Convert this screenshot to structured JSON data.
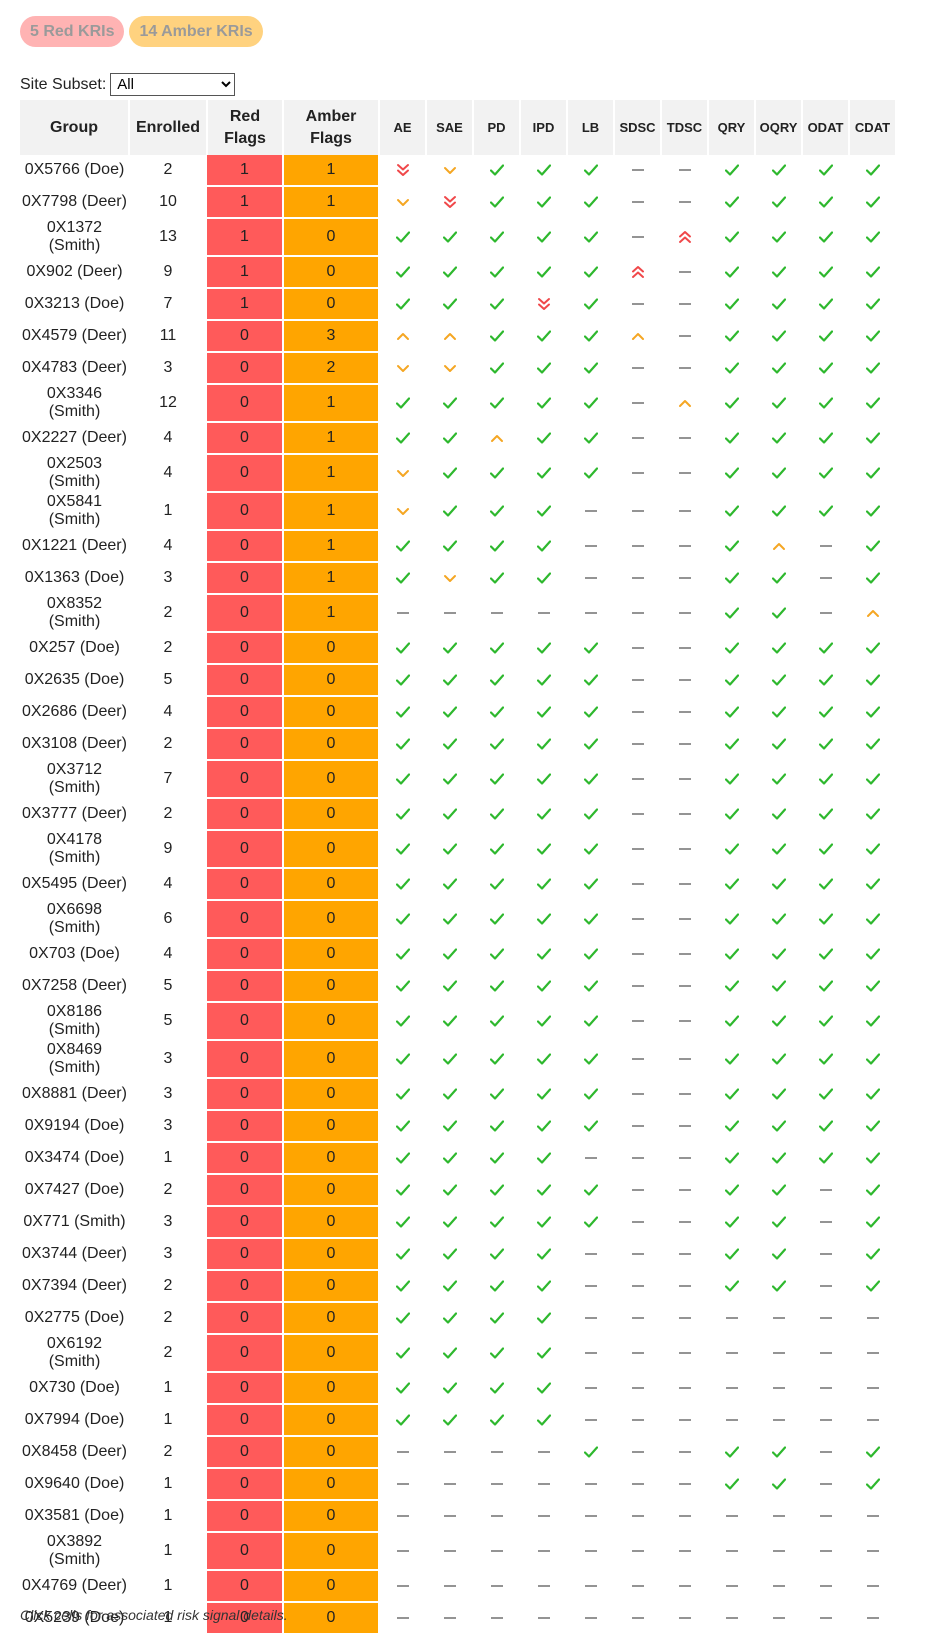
{
  "badges": {
    "red": "5 Red KRIs",
    "amber": "14 Amber KRIs"
  },
  "subset": {
    "label": "Site Subset:",
    "selected": "All"
  },
  "table": {
    "headers": [
      "Group",
      "Enrolled",
      "Red Flags",
      "Amber Flags"
    ],
    "kri_headers": [
      "AE",
      "SAE",
      "PD",
      "IPD",
      "LB",
      "SDSC",
      "TDSC",
      "QRY",
      "OQRY",
      "ODAT",
      "CDAT"
    ],
    "rows": [
      {
        "group": "0X5766 (Doe)",
        "enrolled": "2",
        "red": "1",
        "amber": "1",
        "kri": [
          "red-down",
          "amber-down",
          "ok",
          "ok",
          "ok",
          "none",
          "none",
          "ok",
          "ok",
          "ok",
          "ok"
        ]
      },
      {
        "group": "0X7798 (Deer)",
        "enrolled": "10",
        "red": "1",
        "amber": "1",
        "kri": [
          "amber-down",
          "red-down",
          "ok",
          "ok",
          "ok",
          "none",
          "none",
          "ok",
          "ok",
          "ok",
          "ok"
        ]
      },
      {
        "group": "0X1372 (Smith)",
        "enrolled": "13",
        "red": "1",
        "amber": "0",
        "kri": [
          "ok",
          "ok",
          "ok",
          "ok",
          "ok",
          "none",
          "red-up",
          "ok",
          "ok",
          "ok",
          "ok"
        ]
      },
      {
        "group": "0X902 (Deer)",
        "enrolled": "9",
        "red": "1",
        "amber": "0",
        "kri": [
          "ok",
          "ok",
          "ok",
          "ok",
          "ok",
          "red-up",
          "none",
          "ok",
          "ok",
          "ok",
          "ok"
        ]
      },
      {
        "group": "0X3213 (Doe)",
        "enrolled": "7",
        "red": "1",
        "amber": "0",
        "kri": [
          "ok",
          "ok",
          "ok",
          "red-down",
          "ok",
          "none",
          "none",
          "ok",
          "ok",
          "ok",
          "ok"
        ]
      },
      {
        "group": "0X4579 (Deer)",
        "enrolled": "11",
        "red": "0",
        "amber": "3",
        "kri": [
          "amber-up",
          "amber-up",
          "ok",
          "ok",
          "ok",
          "amber-up",
          "none",
          "ok",
          "ok",
          "ok",
          "ok"
        ]
      },
      {
        "group": "0X4783 (Deer)",
        "enrolled": "3",
        "red": "0",
        "amber": "2",
        "kri": [
          "amber-down",
          "amber-down",
          "ok",
          "ok",
          "ok",
          "none",
          "none",
          "ok",
          "ok",
          "ok",
          "ok"
        ]
      },
      {
        "group": "0X3346 (Smith)",
        "enrolled": "12",
        "red": "0",
        "amber": "1",
        "kri": [
          "ok",
          "ok",
          "ok",
          "ok",
          "ok",
          "none",
          "amber-up",
          "ok",
          "ok",
          "ok",
          "ok"
        ]
      },
      {
        "group": "0X2227 (Deer)",
        "enrolled": "4",
        "red": "0",
        "amber": "1",
        "kri": [
          "ok",
          "ok",
          "amber-up",
          "ok",
          "ok",
          "none",
          "none",
          "ok",
          "ok",
          "ok",
          "ok"
        ]
      },
      {
        "group": "0X2503 (Smith)",
        "enrolled": "4",
        "red": "0",
        "amber": "1",
        "kri": [
          "amber-down",
          "ok",
          "ok",
          "ok",
          "ok",
          "none",
          "none",
          "ok",
          "ok",
          "ok",
          "ok"
        ]
      },
      {
        "group": "0X5841 (Smith)",
        "enrolled": "1",
        "red": "0",
        "amber": "1",
        "kri": [
          "amber-down",
          "ok",
          "ok",
          "ok",
          "none",
          "none",
          "none",
          "ok",
          "ok",
          "ok",
          "ok"
        ]
      },
      {
        "group": "0X1221 (Deer)",
        "enrolled": "4",
        "red": "0",
        "amber": "1",
        "kri": [
          "ok",
          "ok",
          "ok",
          "ok",
          "none",
          "none",
          "none",
          "ok",
          "amber-up",
          "none",
          "ok"
        ]
      },
      {
        "group": "0X1363 (Doe)",
        "enrolled": "3",
        "red": "0",
        "amber": "1",
        "kri": [
          "ok",
          "amber-down",
          "ok",
          "ok",
          "none",
          "none",
          "none",
          "ok",
          "ok",
          "none",
          "ok"
        ]
      },
      {
        "group": "0X8352 (Smith)",
        "enrolled": "2",
        "red": "0",
        "amber": "1",
        "kri": [
          "none",
          "none",
          "none",
          "none",
          "none",
          "none",
          "none",
          "ok",
          "ok",
          "none",
          "amber-up"
        ]
      },
      {
        "group": "0X257 (Doe)",
        "enrolled": "2",
        "red": "0",
        "amber": "0",
        "kri": [
          "ok",
          "ok",
          "ok",
          "ok",
          "ok",
          "none",
          "none",
          "ok",
          "ok",
          "ok",
          "ok"
        ]
      },
      {
        "group": "0X2635 (Doe)",
        "enrolled": "5",
        "red": "0",
        "amber": "0",
        "kri": [
          "ok",
          "ok",
          "ok",
          "ok",
          "ok",
          "none",
          "none",
          "ok",
          "ok",
          "ok",
          "ok"
        ]
      },
      {
        "group": "0X2686 (Deer)",
        "enrolled": "4",
        "red": "0",
        "amber": "0",
        "kri": [
          "ok",
          "ok",
          "ok",
          "ok",
          "ok",
          "none",
          "none",
          "ok",
          "ok",
          "ok",
          "ok"
        ]
      },
      {
        "group": "0X3108 (Deer)",
        "enrolled": "2",
        "red": "0",
        "amber": "0",
        "kri": [
          "ok",
          "ok",
          "ok",
          "ok",
          "ok",
          "none",
          "none",
          "ok",
          "ok",
          "ok",
          "ok"
        ]
      },
      {
        "group": "0X3712 (Smith)",
        "enrolled": "7",
        "red": "0",
        "amber": "0",
        "kri": [
          "ok",
          "ok",
          "ok",
          "ok",
          "ok",
          "none",
          "none",
          "ok",
          "ok",
          "ok",
          "ok"
        ]
      },
      {
        "group": "0X3777 (Deer)",
        "enrolled": "2",
        "red": "0",
        "amber": "0",
        "kri": [
          "ok",
          "ok",
          "ok",
          "ok",
          "ok",
          "none",
          "none",
          "ok",
          "ok",
          "ok",
          "ok"
        ]
      },
      {
        "group": "0X4178 (Smith)",
        "enrolled": "9",
        "red": "0",
        "amber": "0",
        "kri": [
          "ok",
          "ok",
          "ok",
          "ok",
          "ok",
          "none",
          "none",
          "ok",
          "ok",
          "ok",
          "ok"
        ]
      },
      {
        "group": "0X5495 (Deer)",
        "enrolled": "4",
        "red": "0",
        "amber": "0",
        "kri": [
          "ok",
          "ok",
          "ok",
          "ok",
          "ok",
          "none",
          "none",
          "ok",
          "ok",
          "ok",
          "ok"
        ]
      },
      {
        "group": "0X6698 (Smith)",
        "enrolled": "6",
        "red": "0",
        "amber": "0",
        "kri": [
          "ok",
          "ok",
          "ok",
          "ok",
          "ok",
          "none",
          "none",
          "ok",
          "ok",
          "ok",
          "ok"
        ]
      },
      {
        "group": "0X703 (Doe)",
        "enrolled": "4",
        "red": "0",
        "amber": "0",
        "kri": [
          "ok",
          "ok",
          "ok",
          "ok",
          "ok",
          "none",
          "none",
          "ok",
          "ok",
          "ok",
          "ok"
        ]
      },
      {
        "group": "0X7258 (Deer)",
        "enrolled": "5",
        "red": "0",
        "amber": "0",
        "kri": [
          "ok",
          "ok",
          "ok",
          "ok",
          "ok",
          "none",
          "none",
          "ok",
          "ok",
          "ok",
          "ok"
        ]
      },
      {
        "group": "0X8186 (Smith)",
        "enrolled": "5",
        "red": "0",
        "amber": "0",
        "kri": [
          "ok",
          "ok",
          "ok",
          "ok",
          "ok",
          "none",
          "none",
          "ok",
          "ok",
          "ok",
          "ok"
        ]
      },
      {
        "group": "0X8469 (Smith)",
        "enrolled": "3",
        "red": "0",
        "amber": "0",
        "kri": [
          "ok",
          "ok",
          "ok",
          "ok",
          "ok",
          "none",
          "none",
          "ok",
          "ok",
          "ok",
          "ok"
        ]
      },
      {
        "group": "0X8881 (Deer)",
        "enrolled": "3",
        "red": "0",
        "amber": "0",
        "kri": [
          "ok",
          "ok",
          "ok",
          "ok",
          "ok",
          "none",
          "none",
          "ok",
          "ok",
          "ok",
          "ok"
        ]
      },
      {
        "group": "0X9194 (Doe)",
        "enrolled": "3",
        "red": "0",
        "amber": "0",
        "kri": [
          "ok",
          "ok",
          "ok",
          "ok",
          "ok",
          "none",
          "none",
          "ok",
          "ok",
          "ok",
          "ok"
        ]
      },
      {
        "group": "0X3474 (Doe)",
        "enrolled": "1",
        "red": "0",
        "amber": "0",
        "kri": [
          "ok",
          "ok",
          "ok",
          "ok",
          "none",
          "none",
          "none",
          "ok",
          "ok",
          "ok",
          "ok"
        ]
      },
      {
        "group": "0X7427 (Doe)",
        "enrolled": "2",
        "red": "0",
        "amber": "0",
        "kri": [
          "ok",
          "ok",
          "ok",
          "ok",
          "ok",
          "none",
          "none",
          "ok",
          "ok",
          "none",
          "ok"
        ]
      },
      {
        "group": "0X771 (Smith)",
        "enrolled": "3",
        "red": "0",
        "amber": "0",
        "kri": [
          "ok",
          "ok",
          "ok",
          "ok",
          "ok",
          "none",
          "none",
          "ok",
          "ok",
          "none",
          "ok"
        ]
      },
      {
        "group": "0X3744 (Deer)",
        "enrolled": "3",
        "red": "0",
        "amber": "0",
        "kri": [
          "ok",
          "ok",
          "ok",
          "ok",
          "none",
          "none",
          "none",
          "ok",
          "ok",
          "none",
          "ok"
        ]
      },
      {
        "group": "0X7394 (Deer)",
        "enrolled": "2",
        "red": "0",
        "amber": "0",
        "kri": [
          "ok",
          "ok",
          "ok",
          "ok",
          "none",
          "none",
          "none",
          "ok",
          "ok",
          "none",
          "ok"
        ]
      },
      {
        "group": "0X2775 (Doe)",
        "enrolled": "2",
        "red": "0",
        "amber": "0",
        "kri": [
          "ok",
          "ok",
          "ok",
          "ok",
          "none",
          "none",
          "none",
          "none",
          "none",
          "none",
          "none"
        ]
      },
      {
        "group": "0X6192 (Smith)",
        "enrolled": "2",
        "red": "0",
        "amber": "0",
        "kri": [
          "ok",
          "ok",
          "ok",
          "ok",
          "none",
          "none",
          "none",
          "none",
          "none",
          "none",
          "none"
        ]
      },
      {
        "group": "0X730 (Doe)",
        "enrolled": "1",
        "red": "0",
        "amber": "0",
        "kri": [
          "ok",
          "ok",
          "ok",
          "ok",
          "none",
          "none",
          "none",
          "none",
          "none",
          "none",
          "none"
        ]
      },
      {
        "group": "0X7994 (Doe)",
        "enrolled": "1",
        "red": "0",
        "amber": "0",
        "kri": [
          "ok",
          "ok",
          "ok",
          "ok",
          "none",
          "none",
          "none",
          "none",
          "none",
          "none",
          "none"
        ]
      },
      {
        "group": "0X8458 (Deer)",
        "enrolled": "2",
        "red": "0",
        "amber": "0",
        "kri": [
          "none",
          "none",
          "none",
          "none",
          "ok",
          "none",
          "none",
          "ok",
          "ok",
          "none",
          "ok"
        ]
      },
      {
        "group": "0X9640 (Doe)",
        "enrolled": "1",
        "red": "0",
        "amber": "0",
        "kri": [
          "none",
          "none",
          "none",
          "none",
          "none",
          "none",
          "none",
          "ok",
          "ok",
          "none",
          "ok"
        ]
      },
      {
        "group": "0X3581 (Doe)",
        "enrolled": "1",
        "red": "0",
        "amber": "0",
        "kri": [
          "none",
          "none",
          "none",
          "none",
          "none",
          "none",
          "none",
          "none",
          "none",
          "none",
          "none"
        ]
      },
      {
        "group": "0X3892 (Smith)",
        "enrolled": "1",
        "red": "0",
        "amber": "0",
        "kri": [
          "none",
          "none",
          "none",
          "none",
          "none",
          "none",
          "none",
          "none",
          "none",
          "none",
          "none"
        ]
      },
      {
        "group": "0X4769 (Deer)",
        "enrolled": "1",
        "red": "0",
        "amber": "0",
        "kri": [
          "none",
          "none",
          "none",
          "none",
          "none",
          "none",
          "none",
          "none",
          "none",
          "none",
          "none"
        ]
      },
      {
        "group": "0X5239 (Doe)",
        "enrolled": "1",
        "red": "0",
        "amber": "0",
        "kri": [
          "none",
          "none",
          "none",
          "none",
          "none",
          "none",
          "none",
          "none",
          "none",
          "none",
          "none"
        ]
      }
    ]
  },
  "footnote": "Click cells for associated risk signal details.",
  "colors": {
    "red_flag": "#ff5a5a",
    "amber_flag": "#ffa500",
    "ok_check": "#2eb82e",
    "red_signal": "#f0484a",
    "amber_signal": "#f5a623",
    "none_dash": "#666666"
  }
}
